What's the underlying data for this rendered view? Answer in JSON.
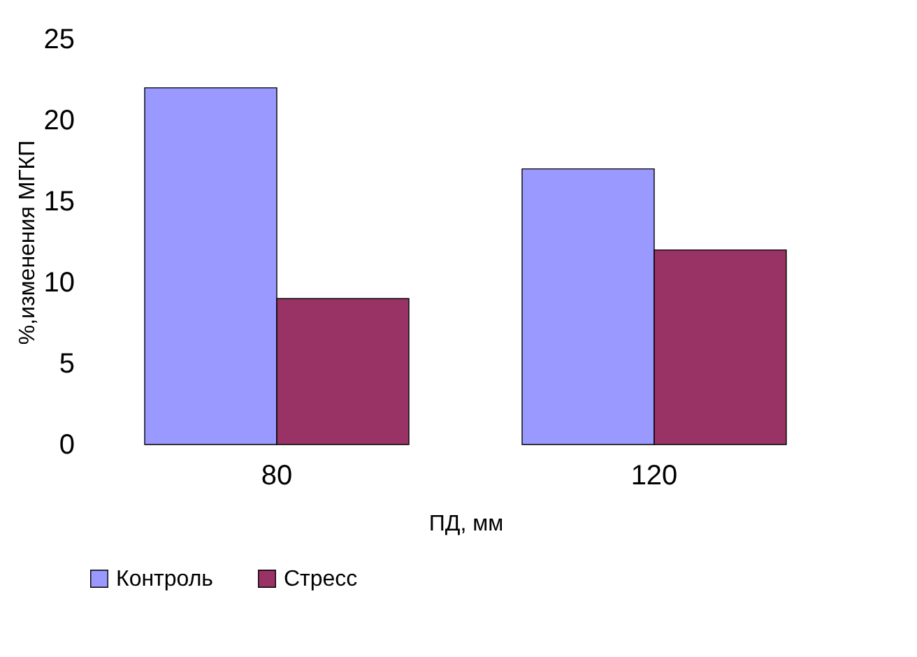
{
  "chart_data": {
    "type": "bar",
    "xlabel": "ПД, мм",
    "ylabel": "%,изменения МГКП",
    "categories": [
      "80",
      "120"
    ],
    "series": [
      {
        "name": "Контроль",
        "color": "#9999ff",
        "values": [
          22,
          17
        ]
      },
      {
        "name": "Стресс",
        "color": "#993366",
        "values": [
          9,
          12
        ]
      }
    ],
    "ylim": [
      0,
      25
    ],
    "yticks": [
      0,
      5,
      10,
      15,
      20,
      25
    ],
    "grid": false,
    "legend": "bottom"
  }
}
